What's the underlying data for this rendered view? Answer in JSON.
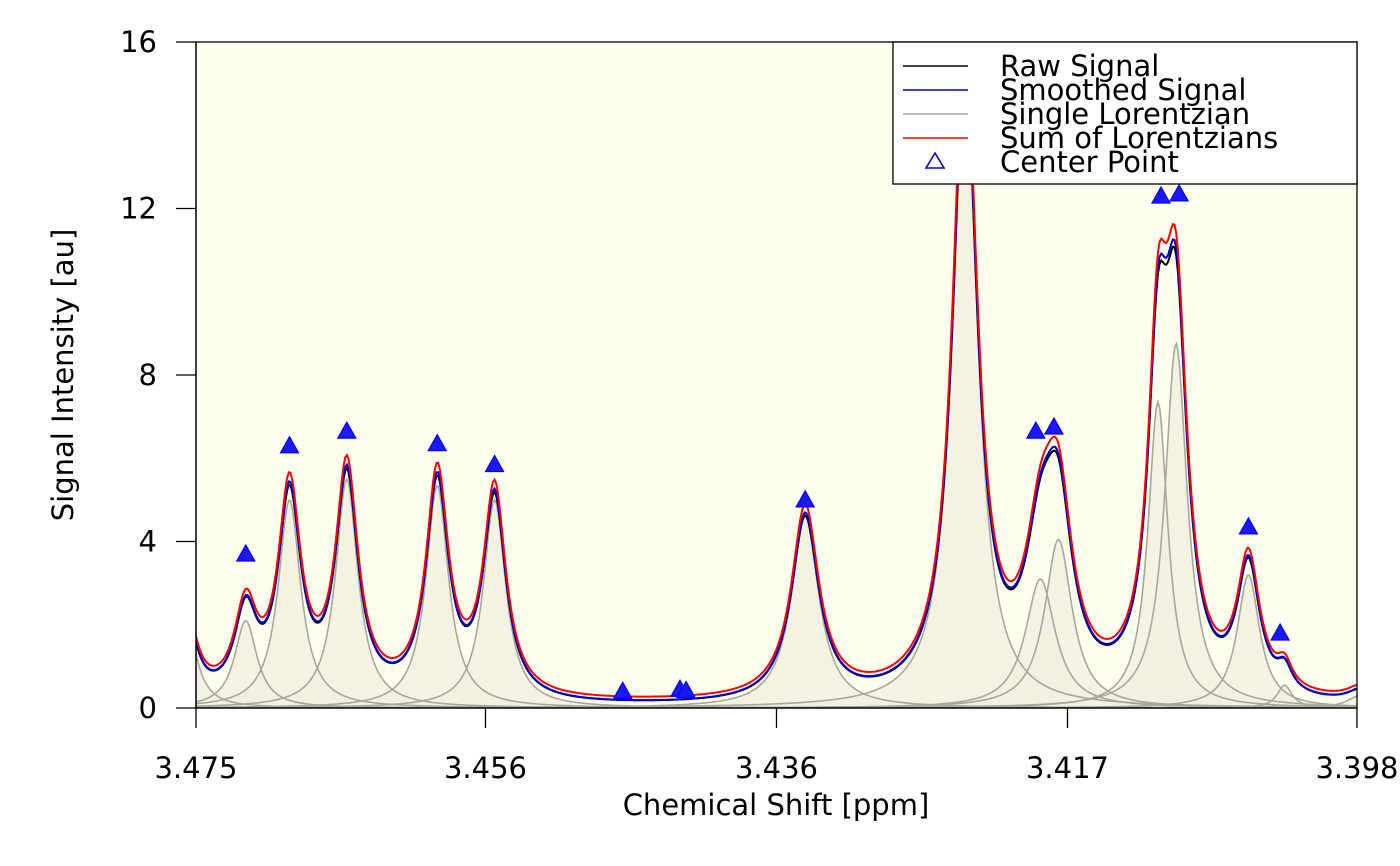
{
  "chart_data": {
    "type": "line",
    "xlabel": "Chemical Shift [ppm]",
    "ylabel": "Signal Intensity [au]",
    "x_reversed": true,
    "xlim": [
      3.475,
      3.398
    ],
    "ylim": [
      0,
      16
    ],
    "xticks": [
      {
        "value": 3.475,
        "label": "3.475"
      },
      {
        "value": 3.4558,
        "label": "3.456"
      },
      {
        "value": 3.4365,
        "label": "3.436"
      },
      {
        "value": 3.4172,
        "label": "3.417"
      },
      {
        "value": 3.398,
        "label": "3.398"
      }
    ],
    "yticks": [
      {
        "value": 0,
        "label": "0"
      },
      {
        "value": 4,
        "label": "4"
      },
      {
        "value": 8,
        "label": "8"
      },
      {
        "value": 12,
        "label": "12"
      },
      {
        "value": 16,
        "label": "16"
      }
    ],
    "grid": false,
    "legend_position": "top-right",
    "legend": [
      {
        "label": "Raw Signal",
        "color": "#000000",
        "symbol": "line"
      },
      {
        "label": "Smoothed Signal",
        "color": "#0000cd",
        "symbol": "line"
      },
      {
        "label": "Single Lorentzian",
        "color": "#a9a9a9",
        "symbol": "line"
      },
      {
        "label": "Sum of Lorentzians",
        "color": "#ff0000",
        "symbol": "line"
      },
      {
        "label": "Center Point",
        "color": "#0000ff",
        "symbol": "triangle"
      }
    ],
    "colors": {
      "background": "#fffff0",
      "lorentzian_fill": "#f2f0e0",
      "lorentzian_line": "#a8a89a",
      "raw": "#000000",
      "smoothed": "#0000cd",
      "sum": "#ff0000",
      "center_fill": "#1a1aee",
      "center_stroke": "#0000ff"
    },
    "peaks": [
      {
        "center": 3.4757,
        "height": 2.3,
        "width": 0.0008
      },
      {
        "center": 3.4717,
        "height": 2.1,
        "width": 0.0009
      },
      {
        "center": 3.4688,
        "height": 5.0,
        "width": 0.0009
      },
      {
        "center": 3.465,
        "height": 5.5,
        "width": 0.0009
      },
      {
        "center": 3.459,
        "height": 5.35,
        "width": 0.0009
      },
      {
        "center": 3.4552,
        "height": 5.0,
        "width": 0.0009
      },
      {
        "center": 3.4346,
        "height": 4.6,
        "width": 0.0011
      },
      {
        "center": 3.424,
        "height": 15.6,
        "width": 0.001
      },
      {
        "center": 3.419,
        "height": 3.1,
        "width": 0.0012
      },
      {
        "center": 3.4178,
        "height": 4.05,
        "width": 0.0011
      },
      {
        "center": 3.4112,
        "height": 7.35,
        "width": 0.0008
      },
      {
        "center": 3.41,
        "height": 8.75,
        "width": 0.0009
      },
      {
        "center": 3.4052,
        "height": 3.2,
        "width": 0.0009
      },
      {
        "center": 3.4028,
        "height": 0.55,
        "width": 0.0006
      },
      {
        "center": 3.3978,
        "height": 0.3,
        "width": 0.001
      }
    ],
    "center_points": [
      {
        "x": 3.4717,
        "y": 3.7
      },
      {
        "x": 3.4688,
        "y": 6.3
      },
      {
        "x": 3.465,
        "y": 6.65
      },
      {
        "x": 3.459,
        "y": 6.35
      },
      {
        "x": 3.4552,
        "y": 5.85
      },
      {
        "x": 3.4467,
        "y": 0.4
      },
      {
        "x": 3.4429,
        "y": 0.45
      },
      {
        "x": 3.4425,
        "y": 0.42
      },
      {
        "x": 3.4346,
        "y": 5.0
      },
      {
        "x": 3.4193,
        "y": 6.65
      },
      {
        "x": 3.4181,
        "y": 6.75
      },
      {
        "x": 3.411,
        "y": 12.3
      },
      {
        "x": 3.4098,
        "y": 12.35
      },
      {
        "x": 3.4052,
        "y": 4.35
      },
      {
        "x": 3.4031,
        "y": 1.8
      }
    ]
  }
}
